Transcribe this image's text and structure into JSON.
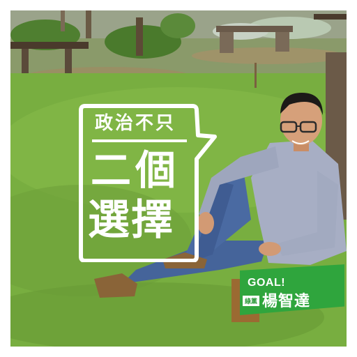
{
  "slogan": {
    "line1": "政治不只",
    "line2": "二個",
    "line3": "選擇"
  },
  "badge": {
    "goal": "GOAL!",
    "party": "綠黨",
    "name": "楊智達"
  },
  "colors": {
    "badge_green": "#2fa53d",
    "badge_brown": "#9b6a32",
    "grass": "#6ea83a",
    "frame": "#ffffff"
  }
}
